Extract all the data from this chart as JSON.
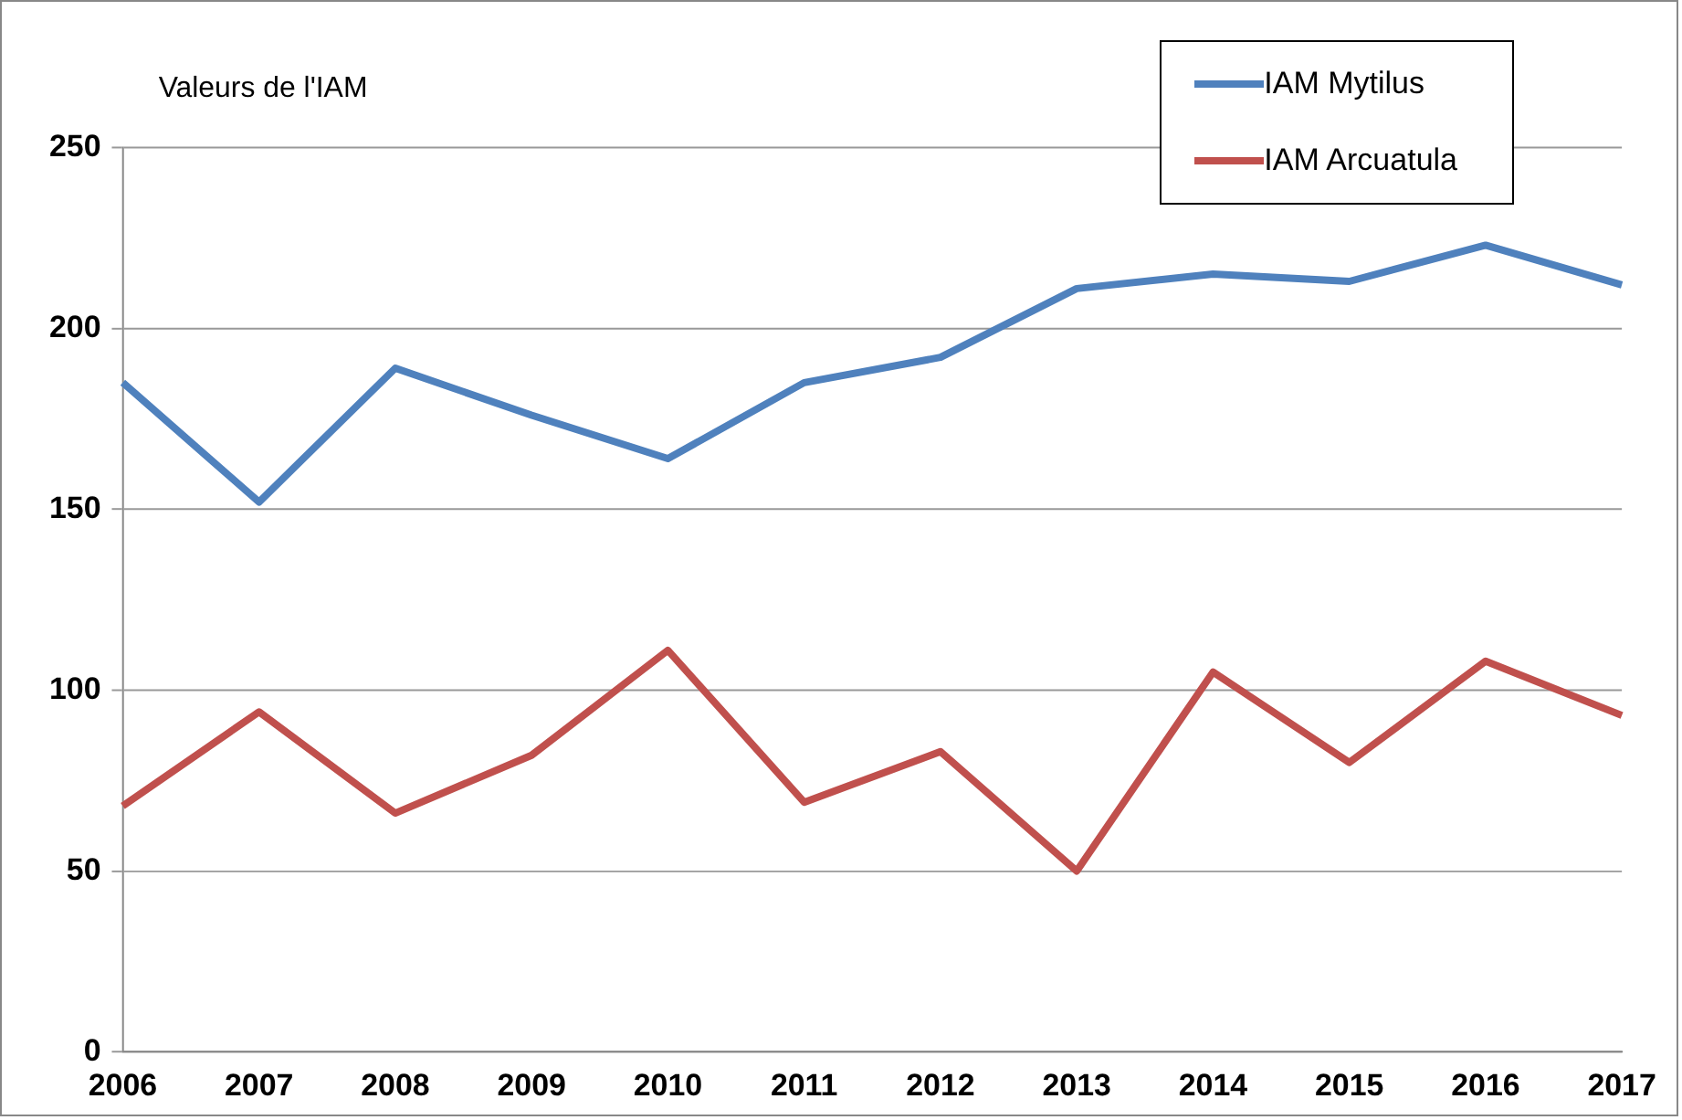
{
  "chart_data": {
    "type": "line",
    "ylabel": "Valeurs de l'IAM",
    "categories": [
      "2006",
      "2007",
      "2008",
      "2009",
      "2010",
      "2011",
      "2012",
      "2013",
      "2014",
      "2015",
      "2016",
      "2017"
    ],
    "series": [
      {
        "name": "IAM Mytilus",
        "color": "#4f81bd",
        "values": [
          185,
          152,
          189,
          176,
          164,
          185,
          192,
          211,
          215,
          213,
          223,
          212
        ]
      },
      {
        "name": "IAM Arcuatula",
        "color": "#c0504d",
        "values": [
          68,
          94,
          66,
          82,
          111,
          69,
          83,
          50,
          105,
          80,
          108,
          93
        ]
      }
    ],
    "ylim": [
      0,
      250
    ],
    "yticks": [
      0,
      50,
      100,
      150,
      200,
      250
    ],
    "grid": "y",
    "legend": "top right",
    "marker": "none",
    "line_style": "solid"
  }
}
